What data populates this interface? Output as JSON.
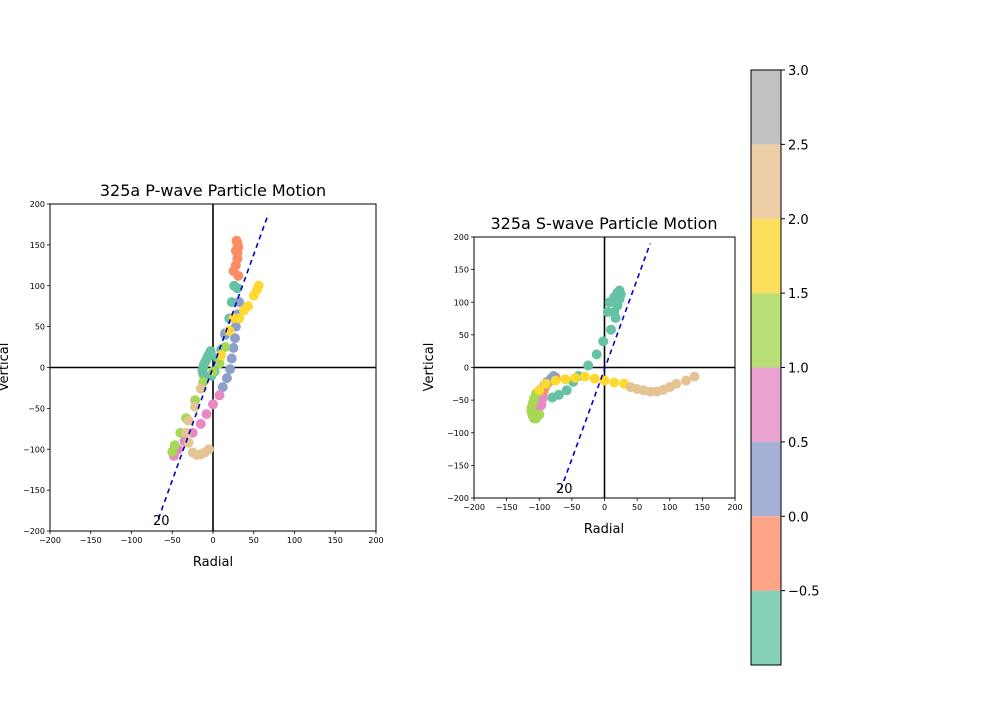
{
  "chart_data": [
    {
      "type": "scatter",
      "title": "325a P-wave Particle Motion",
      "xlabel": "Radial",
      "ylabel": "Vertical",
      "xlim": [
        -200,
        200
      ],
      "ylim": [
        -200,
        200
      ],
      "xticks": [
        "−200",
        "−150",
        "−100",
        "−50",
        "0",
        "50",
        "100",
        "150",
        "200"
      ],
      "yticks": [
        "−200",
        "−150",
        "−100",
        "−50",
        "0",
        "50",
        "100",
        "150",
        "200"
      ],
      "annotation": "20",
      "reference_line": {
        "x": [
          -67,
          68
        ],
        "y": [
          -185,
          188
        ],
        "color": "#0000cc"
      },
      "points": [
        [
          -3,
          20,
          -1.0
        ],
        [
          -5,
          16,
          -1.0
        ],
        [
          -7,
          12,
          -1.0
        ],
        [
          -9,
          8,
          -1.0
        ],
        [
          -11,
          4,
          -1.0
        ],
        [
          -12,
          0,
          -1.0
        ],
        [
          -13,
          -4,
          -1.0
        ],
        [
          -12,
          -8,
          -1.0
        ],
        [
          -10,
          -12,
          -1.0
        ],
        [
          5,
          12,
          -0.5
        ],
        [
          10,
          22,
          -0.5
        ],
        [
          15,
          40,
          -0.5
        ],
        [
          20,
          60,
          -0.5
        ],
        [
          23,
          80,
          -0.5
        ],
        [
          26,
          100,
          -0.5
        ],
        [
          30,
          97,
          -0.5
        ],
        [
          2,
          -5,
          -0.5
        ],
        [
          -2,
          -10,
          -0.5
        ],
        [
          25,
          118,
          0.0
        ],
        [
          28,
          125,
          0.0
        ],
        [
          30,
          133,
          0.0
        ],
        [
          30,
          140,
          0.0
        ],
        [
          31,
          147,
          0.0
        ],
        [
          30,
          152,
          0.0
        ],
        [
          29,
          155,
          0.0
        ],
        [
          31,
          112,
          0.0
        ],
        [
          28,
          143,
          0.0
        ],
        [
          32,
          80,
          0.5
        ],
        [
          30,
          65,
          0.5
        ],
        [
          28,
          50,
          0.5
        ],
        [
          27,
          36,
          0.5
        ],
        [
          25,
          24,
          0.5
        ],
        [
          23,
          11,
          0.5
        ],
        [
          21,
          -2,
          0.5
        ],
        [
          17,
          -13,
          0.5
        ],
        [
          12,
          -24,
          0.5
        ],
        [
          15,
          42,
          0.5
        ],
        [
          8,
          -34,
          1.0
        ],
        [
          0,
          -45,
          1.0
        ],
        [
          -8,
          -57,
          1.0
        ],
        [
          -15,
          -69,
          1.0
        ],
        [
          -25,
          -80,
          1.0
        ],
        [
          -35,
          -90,
          1.0
        ],
        [
          -43,
          -100,
          1.0
        ],
        [
          -48,
          -108,
          1.0
        ],
        [
          -50,
          -103,
          1.5
        ],
        [
          -47,
          -95,
          1.5
        ],
        [
          -40,
          -80,
          1.5
        ],
        [
          -33,
          -62,
          1.5
        ],
        [
          -22,
          -40,
          1.5
        ],
        [
          -12,
          -18,
          1.5
        ],
        [
          0,
          -5,
          1.5
        ],
        [
          8,
          5,
          1.5
        ],
        [
          15,
          25,
          1.5
        ],
        [
          20,
          45,
          2.0
        ],
        [
          25,
          60,
          2.0
        ],
        [
          32,
          60,
          2.0
        ],
        [
          38,
          70,
          2.0
        ],
        [
          43,
          75,
          2.0
        ],
        [
          50,
          88,
          2.0
        ],
        [
          54,
          95,
          2.0
        ],
        [
          56,
          100,
          2.0
        ],
        [
          10,
          15,
          2.0
        ],
        [
          -5,
          -100,
          2.5
        ],
        [
          -10,
          -104,
          2.5
        ],
        [
          -15,
          -106,
          2.5
        ],
        [
          -20,
          -107,
          2.5
        ],
        [
          -25,
          -104,
          2.5
        ],
        [
          -30,
          -92,
          2.5
        ],
        [
          -33,
          -80,
          2.5
        ],
        [
          -30,
          -65,
          2.5
        ],
        [
          -22,
          -48,
          2.5
        ],
        [
          -15,
          -26,
          2.5
        ]
      ]
    },
    {
      "type": "scatter",
      "title": "325a S-wave Particle Motion",
      "xlabel": "Radial",
      "ylabel": "Vertical",
      "xlim": [
        -200,
        200
      ],
      "ylim": [
        -200,
        200
      ],
      "xticks": [
        "−200",
        "−150",
        "−100",
        "−50",
        "0",
        "50",
        "100",
        "150",
        "200"
      ],
      "yticks": [
        "−200",
        "−150",
        "−100",
        "−50",
        "0",
        "50",
        "100",
        "150",
        "200"
      ],
      "annotation": "20",
      "reference_line": {
        "x": [
          -67,
          70
        ],
        "y": [
          -187,
          190
        ],
        "color": "#0000cc"
      },
      "points": [
        [
          10,
          58,
          -1.0
        ],
        [
          8,
          100,
          -1.0
        ],
        [
          15,
          108,
          -1.0
        ],
        [
          20,
          115,
          -1.0
        ],
        [
          23,
          118,
          -1.0
        ],
        [
          25,
          112,
          -1.0
        ],
        [
          23,
          105,
          -1.0
        ],
        [
          20,
          95,
          -1.0
        ],
        [
          15,
          85,
          -1.0
        ],
        [
          5,
          85,
          -1.0
        ],
        [
          17,
          76,
          -1.0
        ],
        [
          -2,
          40,
          -0.5
        ],
        [
          -12,
          20,
          -0.5
        ],
        [
          -25,
          3,
          -0.5
        ],
        [
          -40,
          -13,
          -0.5
        ],
        [
          -48,
          -22,
          -0.5
        ],
        [
          -58,
          -35,
          -0.5
        ],
        [
          -70,
          -42,
          -0.5
        ],
        [
          -80,
          -46,
          -0.5
        ],
        [
          -75,
          -15,
          0.0
        ],
        [
          -80,
          -18,
          0.0
        ],
        [
          -85,
          -22,
          0.0
        ],
        [
          -90,
          -28,
          0.0
        ],
        [
          -93,
          -35,
          0.0
        ],
        [
          -95,
          -42,
          0.0
        ],
        [
          -78,
          -13,
          0.5
        ],
        [
          -82,
          -17,
          0.5
        ],
        [
          -88,
          -22,
          0.5
        ],
        [
          -92,
          -27,
          0.5
        ],
        [
          -95,
          -48,
          1.0
        ],
        [
          -98,
          -53,
          1.0
        ],
        [
          -100,
          -58,
          1.0
        ],
        [
          -102,
          -63,
          1.0
        ],
        [
          -103,
          -68,
          1.0
        ],
        [
          -97,
          -58,
          1.0
        ],
        [
          -105,
          -40,
          1.5
        ],
        [
          -108,
          -48,
          1.5
        ],
        [
          -110,
          -55,
          1.5
        ],
        [
          -112,
          -62,
          1.5
        ],
        [
          -112,
          -68,
          1.5
        ],
        [
          -110,
          -74,
          1.5
        ],
        [
          -108,
          -78,
          1.5
        ],
        [
          -105,
          -78,
          1.5
        ],
        [
          -100,
          -72,
          1.5
        ],
        [
          -90,
          -25,
          2.0
        ],
        [
          -75,
          -20,
          2.0
        ],
        [
          -60,
          -18,
          2.0
        ],
        [
          -45,
          -16,
          2.0
        ],
        [
          -30,
          -14,
          2.0
        ],
        [
          -15,
          -17,
          2.0
        ],
        [
          0,
          -20,
          2.0
        ],
        [
          15,
          -23,
          2.0
        ],
        [
          30,
          -25,
          2.0
        ],
        [
          -100,
          -35,
          2.0
        ],
        [
          40,
          -30,
          2.5
        ],
        [
          50,
          -33,
          2.5
        ],
        [
          60,
          -35,
          2.5
        ],
        [
          70,
          -37,
          2.5
        ],
        [
          80,
          -37,
          2.5
        ],
        [
          90,
          -34,
          2.5
        ],
        [
          100,
          -30,
          2.5
        ],
        [
          110,
          -25,
          2.5
        ],
        [
          125,
          -20,
          2.5
        ],
        [
          138,
          -14,
          2.5
        ]
      ]
    }
  ],
  "colorbar": {
    "vmin": -1.0,
    "vmax": 3.0,
    "ticks": [
      {
        "value": -0.5,
        "label": "−0.5"
      },
      {
        "value": 0.0,
        "label": "0.0"
      },
      {
        "value": 0.5,
        "label": "0.5"
      },
      {
        "value": 1.0,
        "label": "1.0"
      },
      {
        "value": 1.5,
        "label": "1.5"
      },
      {
        "value": 2.0,
        "label": "2.0"
      },
      {
        "value": 2.5,
        "label": "2.5"
      },
      {
        "value": 3.0,
        "label": "3.0"
      }
    ],
    "bands": [
      {
        "from": -1.0,
        "to": -0.5,
        "color": "#85d0b8",
        "point_color": "#66c2a5"
      },
      {
        "from": -0.5,
        "to": 0.0,
        "color": "#fda586",
        "point_color": "#fc8d62"
      },
      {
        "from": 0.0,
        "to": 0.5,
        "color": "#a3b1d6",
        "point_color": "#8da0cb"
      },
      {
        "from": 0.5,
        "to": 1.0,
        "color": "#eaa3d1",
        "point_color": "#e78ac3"
      },
      {
        "from": 1.0,
        "to": 1.5,
        "color": "#b9e076",
        "point_color": "#a6d854"
      },
      {
        "from": 1.5,
        "to": 2.0,
        "color": "#ffe05e",
        "point_color": "#ffd92f"
      },
      {
        "from": 2.0,
        "to": 2.5,
        "color": "#edcea6",
        "point_color": "#e5c494"
      },
      {
        "from": 2.5,
        "to": 3.0,
        "color": "#c1c1c1",
        "point_color": "#b3b3b3"
      }
    ]
  }
}
